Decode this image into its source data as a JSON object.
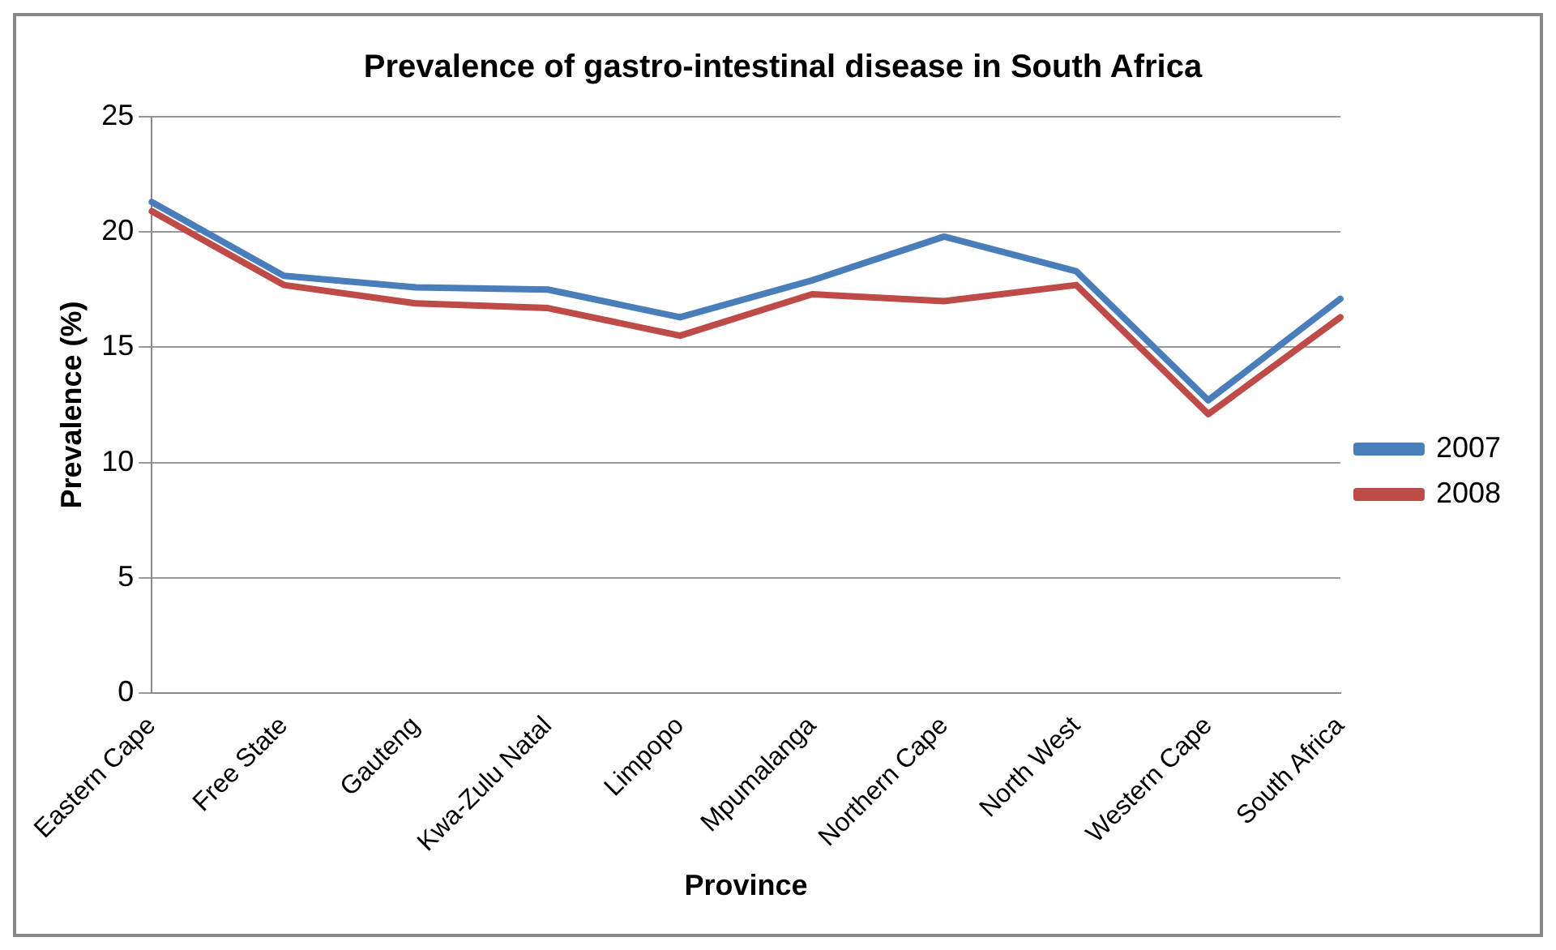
{
  "chart_data": {
    "type": "line",
    "title": "Prevalence of gastro-intestinal disease in South Africa",
    "xlabel": "Province",
    "ylabel": "Prevalence (%)",
    "categories": [
      "Eastern Cape",
      "Free State",
      "Gauteng",
      "Kwa-Zulu Natal",
      "Limpopo",
      "Mpumalanga",
      "Northern Cape",
      "North West",
      "Western Cape",
      "South Africa"
    ],
    "series": [
      {
        "name": "2007",
        "color": "#4a7ebb",
        "values": [
          21.3,
          18.1,
          17.6,
          17.5,
          16.3,
          17.9,
          19.8,
          18.3,
          12.7,
          17.1
        ]
      },
      {
        "name": "2008",
        "color": "#be4b48",
        "values": [
          20.9,
          17.7,
          16.9,
          16.7,
          15.5,
          17.3,
          17.0,
          17.7,
          12.1,
          16.3
        ]
      }
    ],
    "ylim": [
      0,
      25
    ],
    "yticks": [
      0,
      5,
      10,
      15,
      20,
      25
    ],
    "grid": "y",
    "legend": "right",
    "marker": "none",
    "line_style": "solid"
  }
}
